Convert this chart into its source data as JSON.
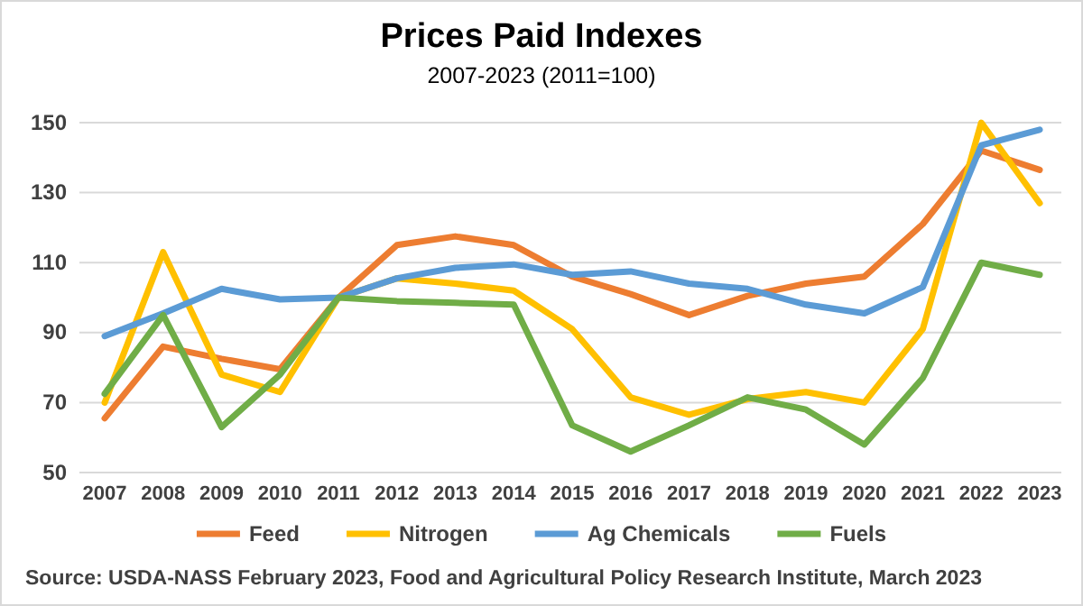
{
  "chart_data": {
    "type": "line",
    "title": "Prices Paid Indexes",
    "subtitle": "2007-2023 (2011=100)",
    "categories": [
      "2007",
      "2008",
      "2009",
      "2010",
      "2011",
      "2012",
      "2013",
      "2014",
      "2015",
      "2016",
      "2017",
      "2018",
      "2019",
      "2020",
      "2021",
      "2022",
      "2023"
    ],
    "series": [
      {
        "name": "Feed",
        "color": "#ed7d31",
        "values": [
          65.5,
          86,
          82.5,
          79.5,
          100,
          115,
          117.5,
          115,
          106,
          101,
          95,
          100.5,
          104,
          106,
          121,
          142,
          136.5
        ]
      },
      {
        "name": "Nitrogen",
        "color": "#ffc000",
        "values": [
          70,
          113,
          78,
          73,
          100,
          105.5,
          104,
          102,
          91,
          71.5,
          66.5,
          71,
          73,
          70,
          91,
          150,
          127
        ]
      },
      {
        "name": "Ag Chemicals",
        "color": "#5b9bd5",
        "values": [
          89,
          95.5,
          102.5,
          99.5,
          100,
          105.5,
          108.5,
          109.5,
          106.5,
          107.5,
          104,
          102.5,
          98,
          95.5,
          103,
          143.5,
          148
        ]
      },
      {
        "name": "Fuels",
        "color": "#70ad47",
        "values": [
          72.5,
          95,
          63,
          78,
          100,
          99,
          98.5,
          98,
          63.5,
          56,
          63.5,
          71.5,
          68,
          58,
          77,
          110,
          106.5
        ]
      }
    ],
    "ylim": [
      50,
      150
    ],
    "yticks": [
      50,
      70,
      90,
      110,
      130,
      150
    ],
    "grid": "y",
    "legend": "bottom",
    "marker": "none",
    "line_style": "solid",
    "annotations": [
      "Source: USDA-NASS February 2023, Food and Agricultural Policy Research Institute, March 2023"
    ]
  }
}
